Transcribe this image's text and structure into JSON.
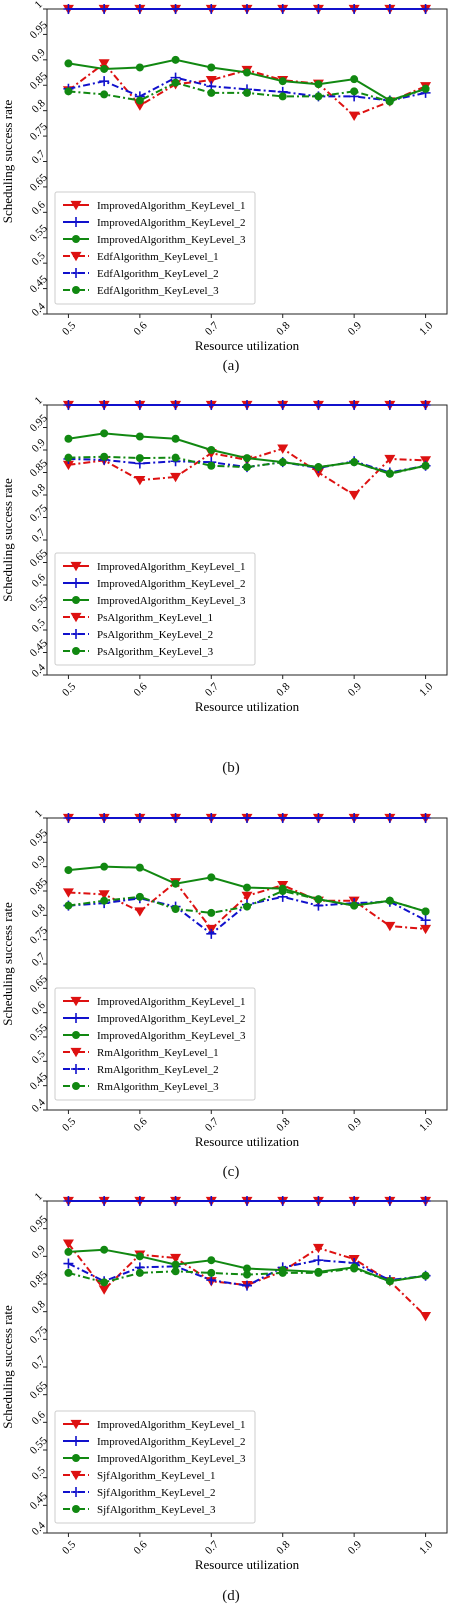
{
  "styles": {
    "improved_color_L1": "#dd1111",
    "improved_color_L2": "#1111cc",
    "improved_color_L3": "#118811",
    "marker_L1": "triangle-down",
    "marker_L2": "plus",
    "marker_L3": "circle",
    "baseline_linestyle": "dash-dot"
  },
  "chart_data": [
    {
      "panel_label": "(a)",
      "type": "line",
      "xlabel": "Resource utilization",
      "ylabel": "Scheduling success rate",
      "xlim": [
        0.47,
        1.03
      ],
      "ylim": [
        0.4,
        1.0
      ],
      "xticks": [
        "0.5",
        "0.6",
        "0.7",
        "0.8",
        "0.9",
        "1.0"
      ],
      "yticks": [
        "0.4",
        "0.45",
        "0.5",
        "0.55",
        "0.6",
        "0.65",
        "0.7",
        "0.75",
        "0.8",
        "0.85",
        "0.9",
        "0.95",
        "1"
      ],
      "x": [
        0.5,
        0.55,
        0.6,
        0.65,
        0.7,
        0.75,
        0.8,
        0.85,
        0.9,
        0.95,
        1.0
      ],
      "legend_position": "lower-left",
      "grid": false,
      "series": [
        {
          "name": "ImprovedAlgorithm_KeyLevel_1",
          "color": "#dd1111",
          "marker": "triangle-down",
          "dash": "solid",
          "values": [
            1,
            1,
            1,
            1,
            1,
            1,
            1,
            1,
            1,
            1,
            1
          ]
        },
        {
          "name": "ImprovedAlgorithm_KeyLevel_2",
          "color": "#1111cc",
          "marker": "plus",
          "dash": "solid",
          "values": [
            1,
            1,
            1,
            1,
            1,
            1,
            1,
            1,
            1,
            1,
            1
          ]
        },
        {
          "name": "ImprovedAlgorithm_KeyLevel_3",
          "color": "#118811",
          "marker": "circle",
          "dash": "solid",
          "values": [
            0.893,
            0.882,
            0.885,
            0.9,
            0.885,
            0.875,
            0.858,
            0.852,
            0.862,
            0.82,
            0.843
          ]
        },
        {
          "name": "EdfAlgorithm_KeyLevel_1",
          "color": "#dd1111",
          "marker": "triangle-down",
          "dash": "dashdot",
          "values": [
            0.84,
            0.893,
            0.81,
            0.852,
            0.86,
            0.88,
            0.86,
            0.853,
            0.79,
            0.818,
            0.848
          ]
        },
        {
          "name": "EdfAlgorithm_KeyLevel_2",
          "color": "#1111cc",
          "marker": "plus",
          "dash": "dashdot",
          "values": [
            0.843,
            0.858,
            0.828,
            0.865,
            0.848,
            0.842,
            0.837,
            0.828,
            0.828,
            0.82,
            0.835
          ]
        },
        {
          "name": "EdfAlgorithm_KeyLevel_3",
          "color": "#118811",
          "marker": "circle",
          "dash": "dashdot",
          "values": [
            0.838,
            0.832,
            0.82,
            0.855,
            0.835,
            0.835,
            0.828,
            0.828,
            0.838,
            0.818,
            0.843
          ]
        }
      ]
    },
    {
      "panel_label": "(b)",
      "type": "line",
      "xlabel": "Resource utilization",
      "ylabel": "Scheduling success rate",
      "xlim": [
        0.47,
        1.03
      ],
      "ylim": [
        0.4,
        1.0
      ],
      "xticks": [
        "0.5",
        "0.6",
        "0.7",
        "0.8",
        "0.9",
        "1.0"
      ],
      "yticks": [
        "0.4",
        "0.45",
        "0.5",
        "0.55",
        "0.6",
        "0.65",
        "0.7",
        "0.75",
        "0.8",
        "0.85",
        "0.9",
        "0.95",
        "1"
      ],
      "x": [
        0.5,
        0.55,
        0.6,
        0.65,
        0.7,
        0.75,
        0.8,
        0.85,
        0.9,
        0.95,
        1.0
      ],
      "legend_position": "lower-left",
      "grid": false,
      "series": [
        {
          "name": "ImprovedAlgorithm_KeyLevel_1",
          "color": "#dd1111",
          "marker": "triangle-down",
          "dash": "solid",
          "values": [
            1,
            1,
            1,
            1,
            1,
            1,
            1,
            1,
            1,
            1,
            1
          ]
        },
        {
          "name": "ImprovedAlgorithm_KeyLevel_2",
          "color": "#1111cc",
          "marker": "plus",
          "dash": "solid",
          "values": [
            1,
            1,
            1,
            1,
            1,
            1,
            1,
            1,
            1,
            1,
            1
          ]
        },
        {
          "name": "ImprovedAlgorithm_KeyLevel_3",
          "color": "#118811",
          "marker": "circle",
          "dash": "solid",
          "values": [
            0.925,
            0.937,
            0.93,
            0.925,
            0.9,
            0.882,
            0.873,
            0.862,
            0.873,
            0.848,
            0.865
          ]
        },
        {
          "name": "PsAlgorithm_KeyLevel_1",
          "color": "#dd1111",
          "marker": "triangle-down",
          "dash": "dashdot",
          "values": [
            0.867,
            0.877,
            0.833,
            0.84,
            0.893,
            0.878,
            0.903,
            0.85,
            0.8,
            0.88,
            0.877
          ]
        },
        {
          "name": "PsAlgorithm_KeyLevel_2",
          "color": "#1111cc",
          "marker": "plus",
          "dash": "dashdot",
          "values": [
            0.88,
            0.878,
            0.87,
            0.875,
            0.873,
            0.862,
            0.873,
            0.86,
            0.875,
            0.85,
            0.865
          ]
        },
        {
          "name": "PsAlgorithm_KeyLevel_3",
          "color": "#118811",
          "marker": "circle",
          "dash": "dashdot",
          "values": [
            0.883,
            0.885,
            0.882,
            0.883,
            0.865,
            0.862,
            0.873,
            0.862,
            0.873,
            0.847,
            0.865
          ]
        }
      ]
    },
    {
      "panel_label": "(c)",
      "type": "line",
      "xlabel": "Resource utilization",
      "ylabel": "Scheduling success rate",
      "xlim": [
        0.47,
        1.03
      ],
      "ylim": [
        0.4,
        1.0
      ],
      "xticks": [
        "0.5",
        "0.6",
        "0.7",
        "0.8",
        "0.9",
        "1.0"
      ],
      "yticks": [
        "0.4",
        "0.45",
        "0.5",
        "0.55",
        "0.6",
        "0.65",
        "0.7",
        "0.75",
        "0.8",
        "0.85",
        "0.9",
        "0.95",
        "1"
      ],
      "x": [
        0.5,
        0.55,
        0.6,
        0.65,
        0.7,
        0.75,
        0.8,
        0.85,
        0.9,
        0.95,
        1.0
      ],
      "legend_position": "lower-left",
      "grid": false,
      "series": [
        {
          "name": "ImprovedAlgorithm_KeyLevel_1",
          "color": "#dd1111",
          "marker": "triangle-down",
          "dash": "solid",
          "values": [
            1,
            1,
            1,
            1,
            1,
            1,
            1,
            1,
            1,
            1,
            1
          ]
        },
        {
          "name": "ImprovedAlgorithm_KeyLevel_2",
          "color": "#1111cc",
          "marker": "plus",
          "dash": "solid",
          "values": [
            1,
            1,
            1,
            1,
            1,
            1,
            1,
            1,
            1,
            1,
            1
          ]
        },
        {
          "name": "ImprovedAlgorithm_KeyLevel_3",
          "color": "#118811",
          "marker": "circle",
          "dash": "solid",
          "values": [
            0.893,
            0.9,
            0.898,
            0.865,
            0.878,
            0.857,
            0.855,
            0.833,
            0.82,
            0.83,
            0.808
          ]
        },
        {
          "name": "RmAlgorithm_KeyLevel_1",
          "color": "#dd1111",
          "marker": "triangle-down",
          "dash": "dashdot",
          "values": [
            0.847,
            0.843,
            0.808,
            0.868,
            0.772,
            0.84,
            0.862,
            0.83,
            0.83,
            0.778,
            0.772
          ]
        },
        {
          "name": "RmAlgorithm_KeyLevel_2",
          "color": "#1111cc",
          "marker": "plus",
          "dash": "dashdot",
          "values": [
            0.82,
            0.825,
            0.835,
            0.818,
            0.762,
            0.822,
            0.838,
            0.82,
            0.825,
            0.828,
            0.79
          ]
        },
        {
          "name": "RmAlgorithm_KeyLevel_3",
          "color": "#118811",
          "marker": "circle",
          "dash": "dashdot",
          "values": [
            0.82,
            0.83,
            0.838,
            0.813,
            0.805,
            0.818,
            0.85,
            0.833,
            0.82,
            0.83,
            0.808
          ]
        }
      ]
    },
    {
      "panel_label": "(d)",
      "type": "line",
      "xlabel": "Resource utilization",
      "ylabel": "Scheduling success rate",
      "xlim": [
        0.47,
        1.03
      ],
      "ylim": [
        0.4,
        1.0
      ],
      "xticks": [
        "0.5",
        "0.6",
        "0.7",
        "0.8",
        "0.9",
        "1.0"
      ],
      "yticks": [
        "0.4",
        "0.45",
        "0.5",
        "0.55",
        "0.6",
        "0.65",
        "0.7",
        "0.75",
        "0.8",
        "0.85",
        "0.9",
        "0.95",
        "1"
      ],
      "x": [
        0.5,
        0.55,
        0.6,
        0.65,
        0.7,
        0.75,
        0.8,
        0.85,
        0.9,
        0.95,
        1.0
      ],
      "legend_position": "lower-left",
      "grid": false,
      "series": [
        {
          "name": "ImprovedAlgorithm_KeyLevel_1",
          "color": "#dd1111",
          "marker": "triangle-down",
          "dash": "solid",
          "values": [
            1,
            1,
            1,
            1,
            1,
            1,
            1,
            1,
            1,
            1,
            1
          ]
        },
        {
          "name": "ImprovedAlgorithm_KeyLevel_2",
          "color": "#1111cc",
          "marker": "plus",
          "dash": "solid",
          "values": [
            1,
            1,
            1,
            1,
            1,
            1,
            1,
            1,
            1,
            1,
            1
          ]
        },
        {
          "name": "ImprovedAlgorithm_KeyLevel_3",
          "color": "#118811",
          "marker": "circle",
          "dash": "solid",
          "values": [
            0.908,
            0.912,
            0.9,
            0.885,
            0.893,
            0.878,
            0.875,
            0.872,
            0.88,
            0.855,
            0.865
          ]
        },
        {
          "name": "SjfAlgorithm_KeyLevel_1",
          "color": "#dd1111",
          "marker": "triangle-down",
          "dash": "dashdot",
          "values": [
            0.923,
            0.84,
            0.903,
            0.897,
            0.855,
            0.848,
            0.873,
            0.915,
            0.895,
            0.855,
            0.792
          ]
        },
        {
          "name": "SjfAlgorithm_KeyLevel_2",
          "color": "#1111cc",
          "marker": "plus",
          "dash": "dashdot",
          "values": [
            0.887,
            0.855,
            0.88,
            0.882,
            0.857,
            0.847,
            0.88,
            0.893,
            0.888,
            0.857,
            0.865
          ]
        },
        {
          "name": "SjfAlgorithm_KeyLevel_3",
          "color": "#118811",
          "marker": "circle",
          "dash": "dashdot",
          "values": [
            0.87,
            0.853,
            0.87,
            0.873,
            0.87,
            0.867,
            0.87,
            0.87,
            0.878,
            0.855,
            0.865
          ]
        }
      ]
    }
  ]
}
